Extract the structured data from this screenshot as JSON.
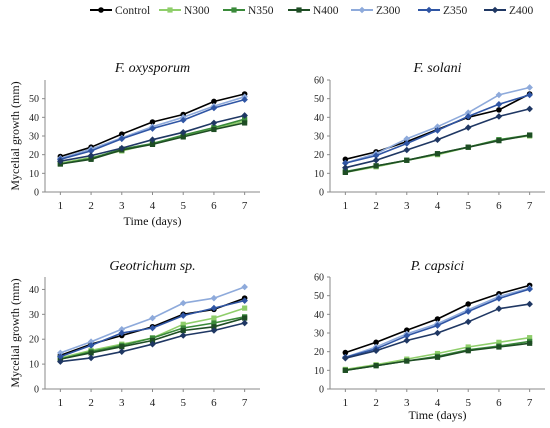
{
  "legend": {
    "position": "top",
    "entries": [
      {
        "name": "Control",
        "color": "#000000",
        "marker": "circle"
      },
      {
        "name": "N300",
        "color": "#8fce6b",
        "marker": "square"
      },
      {
        "name": "N350",
        "color": "#3a8a3a",
        "marker": "square"
      },
      {
        "name": "N400",
        "color": "#1e4d24",
        "marker": "square"
      },
      {
        "name": "Z300",
        "color": "#8eaadb",
        "marker": "diamond"
      },
      {
        "name": "Z350",
        "color": "#2f55a4",
        "marker": "diamond"
      },
      {
        "name": "Z400",
        "color": "#1f3763",
        "marker": "diamond"
      }
    ]
  },
  "chart_data": [
    {
      "type": "line",
      "title": "F. oxysporum",
      "xlabel": "Time (days)",
      "ylabel": "Mycelial growth (mm)",
      "x": [
        1,
        2,
        3,
        4,
        5,
        6,
        7
      ],
      "xticks": [
        "1",
        "2",
        "3",
        "4",
        "5",
        "6",
        "7"
      ],
      "ylim": [
        0,
        60
      ],
      "yticks": [
        "0",
        "10",
        "20",
        "30",
        "40",
        "50"
      ],
      "grid": false,
      "series": [
        {
          "name": "Control",
          "values": [
            19,
            24,
            31,
            37.5,
            41.5,
            48.5,
            52.5
          ]
        },
        {
          "name": "N300",
          "values": [
            15.5,
            18.5,
            22,
            26,
            30,
            34,
            38
          ]
        },
        {
          "name": "N350",
          "values": [
            15,
            18,
            23,
            26,
            30.5,
            34.5,
            39
          ]
        },
        {
          "name": "N400",
          "values": [
            15,
            17.5,
            22.5,
            25.5,
            29.5,
            33.5,
            37
          ]
        },
        {
          "name": "Z300",
          "values": [
            18,
            23,
            29,
            35,
            40,
            46,
            51
          ]
        },
        {
          "name": "Z350",
          "values": [
            17.5,
            22,
            28.5,
            34,
            38.5,
            45,
            49.5
          ]
        },
        {
          "name": "Z400",
          "values": [
            16.5,
            19.5,
            23.5,
            28,
            32,
            37,
            41
          ]
        }
      ]
    },
    {
      "type": "line",
      "title": "F. solani",
      "xlabel": "",
      "ylabel": "",
      "x": [
        1,
        2,
        3,
        4,
        5,
        6,
        7
      ],
      "xticks": [
        "1",
        "2",
        "3",
        "4",
        "5",
        "6",
        "7"
      ],
      "ylim": [
        0,
        60
      ],
      "yticks": [
        "0",
        "10",
        "20",
        "30",
        "40",
        "50",
        "60"
      ],
      "grid": false,
      "series": [
        {
          "name": "Control",
          "values": [
            17.5,
            21.5,
            27,
            33.5,
            40,
            44,
            52.5
          ]
        },
        {
          "name": "N300",
          "values": [
            10.5,
            13.5,
            17,
            20,
            24,
            28,
            30
          ]
        },
        {
          "name": "N350",
          "values": [
            11,
            14,
            17,
            20.5,
            24,
            28,
            30.5
          ]
        },
        {
          "name": "N400",
          "values": [
            10.5,
            14,
            17,
            20.5,
            24,
            27.5,
            30.5
          ]
        },
        {
          "name": "Z300",
          "values": [
            15.5,
            20.5,
            28.5,
            35,
            42.5,
            52,
            56
          ]
        },
        {
          "name": "Z350",
          "values": [
            15.5,
            19.5,
            26,
            33,
            40.5,
            47,
            52
          ]
        },
        {
          "name": "Z400",
          "values": [
            13,
            17,
            22.5,
            28,
            34.5,
            40.5,
            44.5
          ]
        }
      ]
    },
    {
      "type": "line",
      "title": "Geotrichum sp.",
      "xlabel": "",
      "ylabel": "Mycelial growth (mm)",
      "x": [
        1,
        2,
        3,
        4,
        5,
        6,
        7
      ],
      "xticks": [
        "1",
        "2",
        "3",
        "4",
        "5",
        "6",
        "7"
      ],
      "ylim": [
        0,
        45
      ],
      "yticks": [
        "0",
        "10",
        "20",
        "30",
        "40"
      ],
      "grid": false,
      "series": [
        {
          "name": "Control",
          "values": [
            13.5,
            18,
            21.5,
            25,
            30,
            32,
            36.5
          ]
        },
        {
          "name": "N300",
          "values": [
            12.5,
            15.5,
            18,
            20.5,
            26,
            28.5,
            32.5
          ]
        },
        {
          "name": "N350",
          "values": [
            12,
            15,
            17.5,
            20.5,
            24.5,
            26.5,
            29
          ]
        },
        {
          "name": "N400",
          "values": [
            12,
            14.5,
            17,
            19.5,
            23.5,
            25,
            28.5
          ]
        },
        {
          "name": "Z300",
          "values": [
            14.5,
            19,
            24,
            28.5,
            34.5,
            36.5,
            41
          ]
        },
        {
          "name": "Z350",
          "values": [
            13,
            17.5,
            22.5,
            24.5,
            29.5,
            32.5,
            35.5
          ]
        },
        {
          "name": "Z400",
          "values": [
            11,
            12.5,
            15,
            18,
            21.5,
            23.5,
            26.5
          ]
        }
      ]
    },
    {
      "type": "line",
      "title": "P. capsici",
      "xlabel": "Time (days)",
      "ylabel": "",
      "x": [
        1,
        2,
        3,
        4,
        5,
        6,
        7
      ],
      "xticks": [
        "1",
        "2",
        "3",
        "4",
        "5",
        "6",
        "7"
      ],
      "ylim": [
        0,
        60
      ],
      "yticks": [
        "0",
        "10",
        "20",
        "30",
        "40",
        "50",
        "60"
      ],
      "grid": false,
      "series": [
        {
          "name": "Control",
          "values": [
            19.5,
            25,
            31.5,
            37.5,
            45.5,
            51,
            55.5
          ]
        },
        {
          "name": "N300",
          "values": [
            10.5,
            13,
            16,
            19,
            22.5,
            25,
            27.5
          ]
        },
        {
          "name": "N350",
          "values": [
            10,
            12.5,
            15,
            17.5,
            21,
            23,
            25.5
          ]
        },
        {
          "name": "N400",
          "values": [
            10,
            12.5,
            15,
            17,
            20.5,
            22.5,
            24.5
          ]
        },
        {
          "name": "Z300",
          "values": [
            17,
            22.5,
            29.5,
            35,
            42.5,
            49.5,
            54
          ]
        },
        {
          "name": "Z350",
          "values": [
            17,
            21.5,
            28.5,
            34,
            41.5,
            48.5,
            53.5
          ]
        },
        {
          "name": "Z400",
          "values": [
            16.5,
            20.5,
            26,
            30,
            36,
            43,
            45.5
          ]
        }
      ]
    }
  ]
}
